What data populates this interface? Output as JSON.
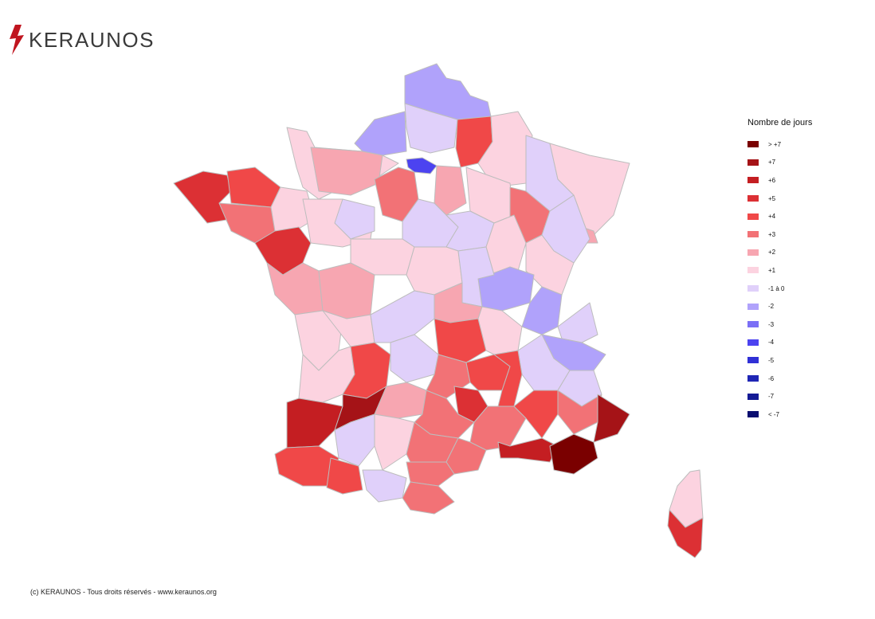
{
  "brand": {
    "name": "KERAUNOS",
    "accent": "#c0151f"
  },
  "legend": {
    "title": "Nombre de jours",
    "items": [
      {
        "label": "> +7",
        "color": "#7a0000"
      },
      {
        "label": "+7",
        "color": "#a51317"
      },
      {
        "label": "+6",
        "color": "#c41e22"
      },
      {
        "label": "+5",
        "color": "#dc3034"
      },
      {
        "label": "+4",
        "color": "#f04848"
      },
      {
        "label": "+3",
        "color": "#f27276"
      },
      {
        "label": "+2",
        "color": "#f7a6b1"
      },
      {
        "label": "+1",
        "color": "#fcd3e0"
      },
      {
        "label": "-1 à 0",
        "color": "#e0d0fa"
      },
      {
        "label": "-2",
        "color": "#b0a2fb"
      },
      {
        "label": "-3",
        "color": "#7b6ff6"
      },
      {
        "label": "-4",
        "color": "#4c43f0"
      },
      {
        "label": "-5",
        "color": "#3030d6"
      },
      {
        "label": "-6",
        "color": "#1f26b5"
      },
      {
        "label": "-7",
        "color": "#141a95"
      },
      {
        "label": "< -7",
        "color": "#0a0d70"
      }
    ]
  },
  "footer": "(c) KERAUNOS - Tous droits réservés - www.keraunos.org"
}
